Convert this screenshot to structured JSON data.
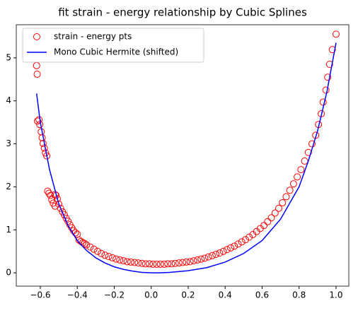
{
  "chart_data": {
    "type": "scatter",
    "title": "fit strain - energy relationship by Cubic Splines",
    "legend": "upper left",
    "xlim": [
      -0.73,
      1.069
    ],
    "ylim": [
      -0.31,
      5.77
    ],
    "xticks": [
      {
        "value": -0.6,
        "label": "−0.6"
      },
      {
        "value": -0.4,
        "label": "−0.4"
      },
      {
        "value": -0.2,
        "label": "−0.2"
      },
      {
        "value": 0,
        "label": "0.0"
      },
      0.2,
      0.4,
      0.6,
      0.8,
      {
        "value": 1,
        "label": "1.0"
      }
    ],
    "yticks": [
      0,
      1,
      2,
      3,
      4,
      5
    ],
    "series": [
      {
        "name": "strain - energy pts",
        "type": "scatter",
        "color": "#ff0000",
        "x": [
          -0.62,
          -0.617,
          -0.615,
          -0.607,
          -0.603,
          -0.595,
          -0.59,
          -0.585,
          -0.578,
          -0.572,
          -0.565,
          -0.56,
          -0.553,
          -0.545,
          -0.538,
          -0.53,
          -0.52,
          -0.52,
          -0.515,
          -0.508,
          -0.5,
          -0.49,
          -0.48,
          -0.47,
          -0.46,
          -0.45,
          -0.44,
          -0.43,
          -0.42,
          -0.41,
          -0.4,
          -0.39,
          -0.38,
          -0.37,
          -0.36,
          -0.35,
          -0.33,
          -0.31,
          -0.29,
          -0.27,
          -0.25,
          -0.23,
          -0.21,
          -0.19,
          -0.17,
          -0.15,
          -0.13,
          -0.11,
          -0.09,
          -0.07,
          -0.05,
          -0.03,
          -0.01,
          0.01,
          0.03,
          0.05,
          0.07,
          0.09,
          0.11,
          0.13,
          0.15,
          0.17,
          0.19,
          0.21,
          0.23,
          0.25,
          0.27,
          0.29,
          0.31,
          0.33,
          0.35,
          0.37,
          0.39,
          0.41,
          0.43,
          0.45,
          0.47,
          0.49,
          0.51,
          0.53,
          0.55,
          0.57,
          0.59,
          0.61,
          0.63,
          0.65,
          0.67,
          0.69,
          0.71,
          0.73,
          0.75,
          0.77,
          0.79,
          0.81,
          0.83,
          0.85,
          0.87,
          0.89,
          0.905,
          0.92,
          0.93,
          0.945,
          0.955,
          0.965,
          0.98,
          1.0
        ],
        "values": [
          4.82,
          4.62,
          3.53,
          3.56,
          3.45,
          3.28,
          3.14,
          3.01,
          2.9,
          2.79,
          2.72,
          1.9,
          1.85,
          1.8,
          1.7,
          1.62,
          1.55,
          1.82,
          1.8,
          1.72,
          1.6,
          1.5,
          1.42,
          1.35,
          1.27,
          1.2,
          1.12,
          1.05,
          0.98,
          0.93,
          0.9,
          0.76,
          0.73,
          0.7,
          0.68,
          0.65,
          0.6,
          0.55,
          0.5,
          0.45,
          0.41,
          0.38,
          0.35,
          0.32,
          0.3,
          0.28,
          0.26,
          0.25,
          0.24,
          0.23,
          0.22,
          0.21,
          0.21,
          0.2,
          0.2,
          0.2,
          0.2,
          0.21,
          0.21,
          0.22,
          0.23,
          0.24,
          0.25,
          0.26,
          0.28,
          0.3,
          0.32,
          0.34,
          0.37,
          0.4,
          0.43,
          0.46,
          0.5,
          0.54,
          0.58,
          0.62,
          0.67,
          0.72,
          0.77,
          0.83,
          0.89,
          0.96,
          1.03,
          1.1,
          1.19,
          1.28,
          1.39,
          1.5,
          1.63,
          1.77,
          1.92,
          2.07,
          2.23,
          2.4,
          2.6,
          2.8,
          3.0,
          3.2,
          3.45,
          3.7,
          3.97,
          4.25,
          4.55,
          4.85,
          5.19,
          5.55
        ]
      },
      {
        "name": "Mono Cubic Hermite (shifted)",
        "type": "line",
        "color": "#0000ff",
        "x": [
          -0.62,
          -0.6,
          -0.55,
          -0.5,
          -0.45,
          -0.4,
          -0.35,
          -0.3,
          -0.25,
          -0.2,
          -0.15,
          -0.1,
          -0.05,
          0,
          0.05,
          0.1,
          0.2,
          0.3,
          0.4,
          0.5,
          0.6,
          0.7,
          0.8,
          0.85,
          0.9,
          0.95,
          1.0
        ],
        "values": [
          4.17,
          3.5,
          2.4,
          1.6,
          1.1,
          0.75,
          0.52,
          0.35,
          0.23,
          0.14,
          0.08,
          0.04,
          0.01,
          0,
          0,
          0.01,
          0.05,
          0.12,
          0.25,
          0.45,
          0.75,
          1.25,
          2.0,
          2.6,
          3.3,
          4.2,
          5.35
        ]
      }
    ]
  }
}
